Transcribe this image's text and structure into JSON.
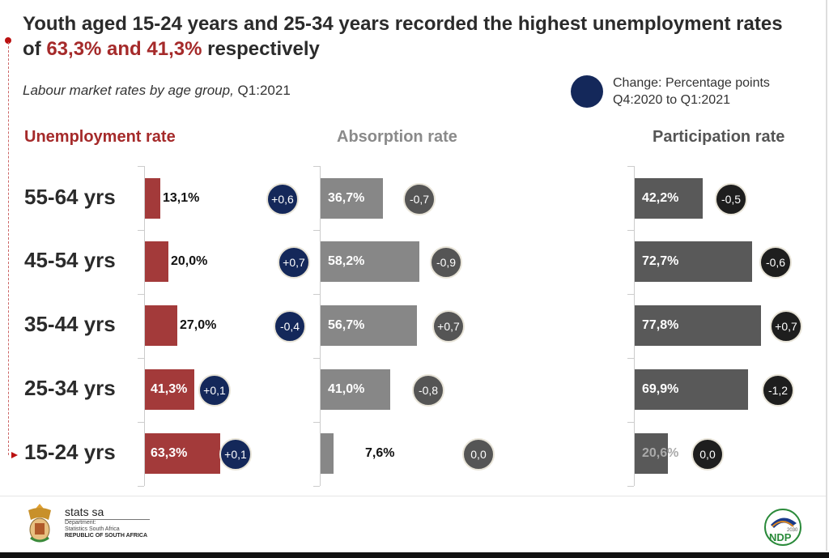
{
  "header": {
    "title_part1": "Youth aged 15-24 years and 25-34 years recorded the highest unemployment rates of ",
    "title_highlight": "63,3% and 41,3%",
    "title_part2": " respectively",
    "subtitle_italic": "Labour market rates by age group,",
    "subtitle_period": " Q1:2021",
    "legend_line1": "Change: Percentage points",
    "legend_line2": "Q4:2020 to Q1:2021"
  },
  "colors": {
    "unemployment": "#a33a3a",
    "absorption": "#878787",
    "participation": "#595959",
    "bubble_unemployment": "#14285a",
    "bubble_absorption": "#555555",
    "bubble_participation": "#1e1e1e",
    "title_highlight": "#a52a2a"
  },
  "chart_data": [
    {
      "type": "bar",
      "title": "Unemployment rate",
      "unit": "%",
      "categories": [
        "55-64 yrs",
        "45-54 yrs",
        "35-44 yrs",
        "25-34 yrs",
        "15-24 yrs"
      ],
      "values": [
        13.1,
        20.0,
        27.0,
        41.3,
        63.3
      ],
      "labels": [
        "13,1%",
        "20,0%",
        "27,0%",
        "41,3%",
        "63,3%"
      ],
      "change_pp": [
        "+0,6",
        "+0,7",
        "-0,4",
        "+0,1",
        "+0,1"
      ],
      "orientation": "horizontal"
    },
    {
      "type": "bar",
      "title": "Absorption rate",
      "unit": "%",
      "categories": [
        "55-64 yrs",
        "45-54 yrs",
        "35-44 yrs",
        "25-34 yrs",
        "15-24 yrs"
      ],
      "values": [
        36.7,
        58.2,
        56.7,
        41.0,
        7.6
      ],
      "labels": [
        "36,7%",
        "58,2%",
        "56,7%",
        "41,0%",
        "7,6%"
      ],
      "change_pp": [
        "-0,7",
        "-0,9",
        "+0,7",
        "-0,8",
        "0,0"
      ],
      "orientation": "horizontal"
    },
    {
      "type": "bar",
      "title": "Participation rate",
      "unit": "%",
      "categories": [
        "55-64 yrs",
        "45-54 yrs",
        "35-44 yrs",
        "25-34 yrs",
        "15-24 yrs"
      ],
      "values": [
        42.2,
        72.7,
        77.8,
        69.9,
        20.6
      ],
      "labels": [
        "42,2%",
        "72,7%",
        "77,8%",
        "69,9%",
        "20,6%"
      ],
      "change_pp": [
        "-0,5",
        "-0,6",
        "+0,7",
        "-1,2",
        "0,0"
      ],
      "orientation": "horizontal"
    }
  ],
  "footer": {
    "brand_name": "stats sa",
    "dept_line1": "Department:",
    "dept_line2": "Statistics South Africa",
    "dept_line3": "REPUBLIC OF SOUTH AFRICA",
    "ndp_year": "2030",
    "ndp_text": "NDP"
  }
}
